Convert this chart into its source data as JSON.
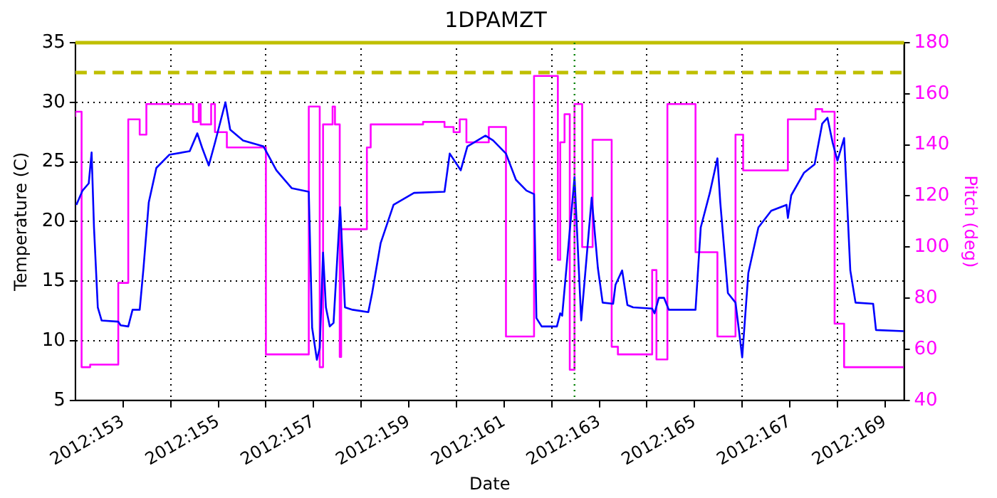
{
  "chart_data": {
    "type": "line",
    "title": "1DPAMZT",
    "xlabel": "Date",
    "ylabel": "Temperature (C)",
    "y2label": "Pitch (deg)",
    "xlim": [
      "2012-05-31",
      "2012-06-17T09:36"
    ],
    "ylim": [
      5,
      35
    ],
    "y2lim": [
      40,
      180
    ],
    "xticks": [
      {
        "value": "2012-06-01",
        "label": "2012:153"
      },
      {
        "value": "2012-06-02",
        "label": null
      },
      {
        "value": "2012-06-03",
        "label": "2012:155"
      },
      {
        "value": "2012-06-04",
        "label": null
      },
      {
        "value": "2012-06-05",
        "label": "2012:157"
      },
      {
        "value": "2012-06-06",
        "label": null
      },
      {
        "value": "2012-06-07",
        "label": "2012:159"
      },
      {
        "value": "2012-06-08",
        "label": null
      },
      {
        "value": "2012-06-09",
        "label": "2012:161"
      },
      {
        "value": "2012-06-10",
        "label": null
      },
      {
        "value": "2012-06-11",
        "label": "2012:163"
      },
      {
        "value": "2012-06-12",
        "label": null
      },
      {
        "value": "2012-06-13",
        "label": "2012:165"
      },
      {
        "value": "2012-06-14",
        "label": null
      },
      {
        "value": "2012-06-15",
        "label": "2012:167"
      },
      {
        "value": "2012-06-16",
        "label": null
      },
      {
        "value": "2012-06-17",
        "label": "2012:169"
      }
    ],
    "yticks": [
      5,
      10,
      15,
      20,
      25,
      30,
      35
    ],
    "y2ticks": [
      40,
      60,
      80,
      100,
      120,
      140,
      160,
      180
    ],
    "grid": true,
    "legend": false,
    "marker": "none",
    "line_style": "solid",
    "ref_lines": [
      {
        "axis": "y",
        "value": 32.5,
        "color": "#bfbf00",
        "line_style": "dashed"
      },
      {
        "axis": "y",
        "value": 35,
        "color": "#bfbf00",
        "line_style": "solid"
      },
      {
        "axis": "x",
        "value": "2012-06-10T11:31",
        "color": "#008000",
        "line_style": "dotted"
      }
    ],
    "series": [
      {
        "color": "#0000ff",
        "x": [
          "2012-05-31T00:29",
          "2012-05-31T03:36",
          "2012-05-31T06:43",
          "2012-05-31T08:10",
          "2012-05-31T09:22",
          "2012-05-31T11:17",
          "2012-05-31T13:12",
          "2012-05-31T21:36",
          "2012-05-31T22:48",
          "2012-06-01T02:38",
          "2012-06-01T04:48",
          "2012-06-01T08:24",
          "2012-06-01T10:19",
          "2012-06-01T12:58",
          "2012-06-01T16:48",
          "2012-06-01T23:17",
          "2012-06-02T09:36",
          "2012-06-02T13:26",
          "2012-06-02T15:50",
          "2012-06-02T19:12",
          "2012-06-02T22:19",
          "2012-06-03T03:36",
          "2012-06-03T06:00",
          "2012-06-03T12:29",
          "2012-06-03T22:48",
          "2012-06-04T05:17",
          "2012-06-04T12:58",
          "2012-06-04T21:36",
          "2012-06-04T23:17",
          "2012-06-05T01:41",
          "2012-06-05T03:07",
          "2012-06-05T04:48",
          "2012-06-05T06:14",
          "2012-06-05T08:10",
          "2012-06-05T10:05",
          "2012-06-05T13:26",
          "2012-06-05T15:50",
          "2012-06-05T19:41",
          "2012-06-06T03:36",
          "2012-06-06T05:31",
          "2012-06-06T09:50",
          "2012-06-06T16:19",
          "2012-06-07T02:38",
          "2012-06-07T18:00",
          "2012-06-07T20:38",
          "2012-06-08T02:10",
          "2012-06-08T05:31",
          "2012-06-08T14:38",
          "2012-06-08T18:29",
          "2012-06-09T00:58",
          "2012-06-09T06:00",
          "2012-06-09T11:17",
          "2012-06-09T15:07",
          "2012-06-09T16:19",
          "2012-06-09T18:58",
          "2012-06-10T02:38",
          "2012-06-10T04:19",
          "2012-06-10T05:17",
          "2012-06-10T11:31",
          "2012-06-10T14:53",
          "2012-06-10T20:10",
          "2012-06-10T23:17",
          "2012-06-11T01:41",
          "2012-06-11T06:58",
          "2012-06-11T08:10",
          "2012-06-11T11:31",
          "2012-06-11T14:10",
          "2012-06-11T17:02",
          "2012-06-12T02:38",
          "2012-06-12T03:50",
          "2012-06-12T06:00",
          "2012-06-12T08:38",
          "2012-06-12T11:02",
          "2012-06-13T00:29",
          "2012-06-13T03:07",
          "2012-06-13T07:41",
          "2012-06-13T11:31",
          "2012-06-13T12:58",
          "2012-06-13T16:48",
          "2012-06-13T20:38",
          "2012-06-13T22:34",
          "2012-06-14T00:00",
          "2012-06-14T03:07",
          "2012-06-14T08:10",
          "2012-06-14T14:38",
          "2012-06-14T22:19",
          "2012-06-14T23:02",
          "2012-06-15T00:43",
          "2012-06-15T07:12",
          "2012-06-15T12:29",
          "2012-06-15T16:19",
          "2012-06-15T18:58",
          "2012-06-15T21:36",
          "2012-06-16T00:00",
          "2012-06-16T03:22",
          "2012-06-16T06:29",
          "2012-06-16T09:07",
          "2012-06-16T18:00",
          "2012-06-16T19:26",
          "2012-06-17T09:22"
        ],
        "values": [
          21.4,
          22.6,
          23.2,
          25.8,
          19.5,
          12.8,
          11.7,
          11.6,
          11.3,
          11.2,
          12.6,
          12.6,
          16.1,
          21.6,
          24.5,
          25.6,
          25.9,
          27.4,
          26.2,
          24.7,
          26.6,
          30.0,
          27.7,
          26.8,
          26.3,
          24.3,
          22.8,
          22.5,
          11.1,
          8.4,
          9.4,
          17.4,
          12.8,
          11.2,
          11.5,
          21.2,
          12.8,
          12.6,
          12.4,
          14.0,
          18.2,
          21.4,
          22.4,
          22.5,
          25.7,
          24.3,
          26.3,
          27.2,
          26.8,
          25.7,
          23.5,
          22.6,
          22.3,
          11.9,
          11.2,
          11.2,
          12.3,
          12.1,
          23.7,
          11.7,
          22.0,
          16.1,
          13.2,
          13.1,
          14.7,
          15.9,
          13.0,
          12.8,
          12.7,
          12.3,
          13.6,
          13.6,
          12.6,
          12.6,
          19.5,
          22.4,
          25.3,
          21.6,
          14.0,
          13.2,
          10.6,
          8.6,
          15.7,
          19.5,
          20.9,
          21.4,
          20.3,
          22.2,
          24.1,
          24.8,
          28.2,
          28.7,
          26.6,
          25.1,
          27.0,
          15.9,
          13.2,
          13.1,
          10.9,
          10.8
        ]
      },
      {
        "type": "step",
        "axis": "y2",
        "color": "#ff00ff",
        "x": [
          "2012-05-31T00:00",
          "2012-05-31T03:07",
          "2012-05-31T07:26",
          "2012-05-31T21:36",
          "2012-06-01T02:38",
          "2012-06-01T08:24",
          "2012-06-01T11:46",
          "2012-06-02T11:17",
          "2012-06-02T14:10",
          "2012-06-02T15:07",
          "2012-06-02T20:24",
          "2012-06-02T22:19",
          "2012-06-03T04:19",
          "2012-06-04T00:00",
          "2012-06-04T21:36",
          "2012-06-05T03:07",
          "2012-06-05T04:48",
          "2012-06-05T09:36",
          "2012-06-05T10:48",
          "2012-06-05T13:12",
          "2012-06-05T13:55",
          "2012-06-06T02:53",
          "2012-06-06T04:48",
          "2012-06-07T07:12",
          "2012-06-07T18:00",
          "2012-06-07T22:34",
          "2012-06-08T01:41",
          "2012-06-08T05:02",
          "2012-06-08T16:19",
          "2012-06-09T00:58",
          "2012-06-09T15:07",
          "2012-06-10T03:07",
          "2012-06-10T04:19",
          "2012-06-10T06:29",
          "2012-06-10T09:07",
          "2012-06-10T11:31",
          "2012-06-10T15:22",
          "2012-06-10T20:38",
          "2012-06-11T06:14",
          "2012-06-11T09:22",
          "2012-06-12T02:38",
          "2012-06-12T04:48",
          "2012-06-12T10:19",
          "2012-06-13T00:29",
          "2012-06-13T11:31",
          "2012-06-13T20:38",
          "2012-06-14T00:29",
          "2012-06-14T23:02",
          "2012-06-15T12:58",
          "2012-06-15T16:19",
          "2012-06-15T22:34",
          "2012-06-16T03:22",
          "2012-06-16T18:00",
          "2012-06-17T09:22"
        ],
        "values": [
          151,
          153,
          53,
          54,
          86,
          150,
          144,
          156,
          149,
          156,
          148,
          156,
          145,
          139,
          58,
          155,
          53,
          148,
          155,
          148,
          57,
          107,
          139,
          148,
          149,
          147,
          145,
          150,
          141,
          147,
          65,
          167,
          95,
          141,
          152,
          52,
          156,
          100,
          142,
          61,
          58,
          91,
          56,
          156,
          98,
          65,
          144,
          130,
          150,
          154,
          153,
          70,
          53,
          53
        ]
      }
    ]
  }
}
